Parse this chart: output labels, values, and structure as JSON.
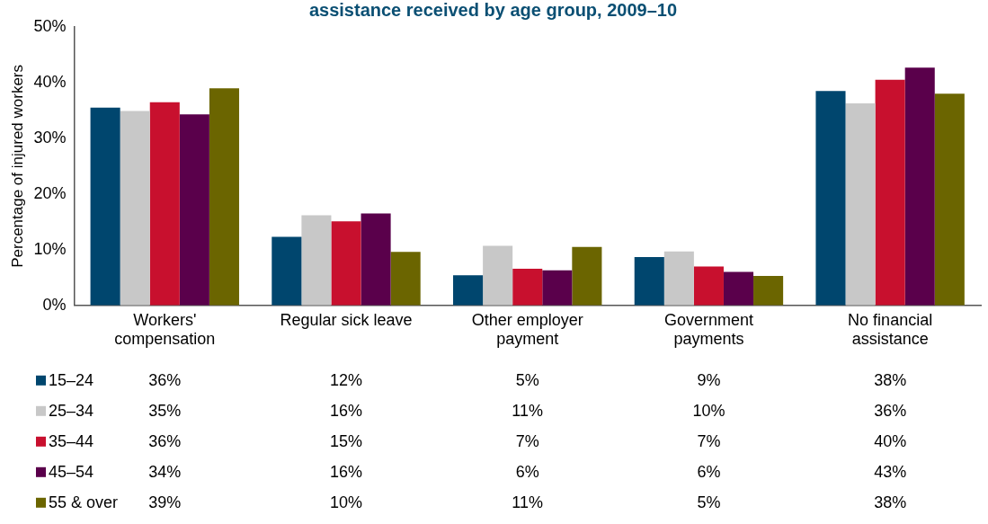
{
  "chart_data": {
    "type": "bar",
    "title": "assistance received by age group, 2009–10",
    "ylabel": "Percentage of injured workers",
    "categories": [
      "Workers' compensation",
      "Regular sick leave",
      "Other employer payment",
      "Government payments",
      "No financial assistance"
    ],
    "series": [
      {
        "name": "15–24",
        "color": "#00466e",
        "values": [
          35.5,
          12.3,
          5.4,
          8.7,
          38.5
        ],
        "value_labels": [
          "36%",
          "12%",
          "5%",
          "9%",
          "38%"
        ]
      },
      {
        "name": "25–34",
        "color": "#c8c8c8",
        "values": [
          34.9,
          16.2,
          10.7,
          9.7,
          36.3
        ],
        "value_labels": [
          "35%",
          "16%",
          "11%",
          "10%",
          "36%"
        ]
      },
      {
        "name": "35–44",
        "color": "#c8102e",
        "values": [
          36.5,
          15.1,
          6.6,
          7.0,
          40.5
        ],
        "value_labels": [
          "36%",
          "15%",
          "7%",
          "7%",
          "40%"
        ]
      },
      {
        "name": "45–54",
        "color": "#5a004b",
        "values": [
          34.3,
          16.5,
          6.3,
          6.0,
          42.7
        ],
        "value_labels": [
          "34%",
          "16%",
          "6%",
          "6%",
          "43%"
        ]
      },
      {
        "name": "55 & over",
        "color": "#6b6500",
        "values": [
          39.0,
          9.6,
          10.5,
          5.3,
          38.0
        ],
        "value_labels": [
          "39%",
          "10%",
          "11%",
          "5%",
          "38%"
        ]
      }
    ],
    "ylim": [
      0,
      50
    ],
    "yticks": [
      {
        "value": 0,
        "label": "0%"
      },
      {
        "value": 10,
        "label": "10%"
      },
      {
        "value": 20,
        "label": "20%"
      },
      {
        "value": 30,
        "label": "30%"
      },
      {
        "value": 40,
        "label": "40%"
      },
      {
        "value": 50,
        "label": "50%"
      }
    ],
    "legend": "bottom"
  }
}
